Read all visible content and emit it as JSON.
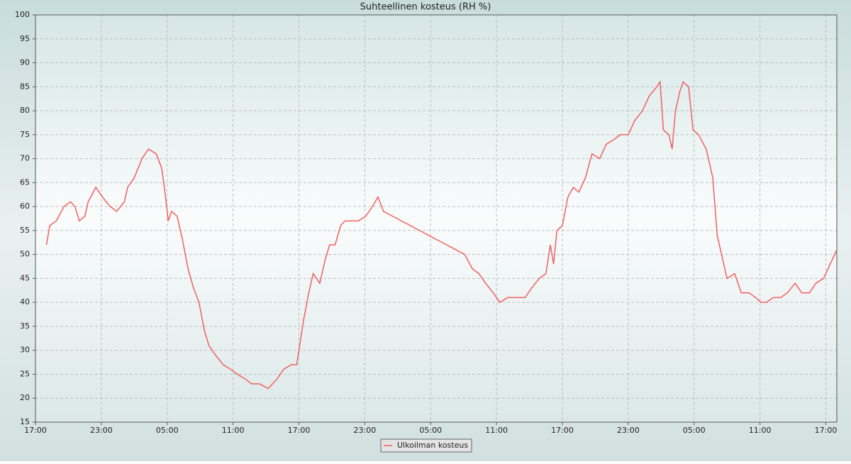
{
  "chart_data": {
    "type": "line",
    "title": "Suhteellinen kosteus (RH %)",
    "series": [
      {
        "name": "Ulkoilman kosteus",
        "color": "#f06060",
        "x": [
          1.0,
          1.3,
          1.9,
          2.6,
          3.2,
          3.6,
          4.0,
          4.5,
          4.8,
          5.5,
          6.1,
          6.8,
          7.4,
          8.1,
          8.4,
          9.0,
          9.7,
          10.3,
          11.0,
          11.5,
          11.8,
          12.1,
          12.4,
          12.9,
          13.4,
          13.9,
          14.4,
          14.9,
          15.4,
          15.8,
          16.4,
          17.1,
          17.8,
          18.4,
          19.1,
          19.7,
          20.4,
          21.2,
          22.0,
          22.6,
          23.3,
          23.8,
          24.0,
          24.4,
          24.9,
          25.3,
          25.9,
          26.4,
          26.8,
          27.3,
          27.8,
          28.2,
          28.8,
          29.4,
          30.1,
          30.7,
          31.2,
          31.7,
          39.1,
          39.8,
          40.4,
          41.0,
          41.7,
          42.3,
          43.0,
          43.9,
          44.6,
          45.2,
          45.9,
          46.5,
          46.9,
          47.2,
          47.5,
          48.0,
          48.5,
          49.0,
          49.5,
          50.1,
          50.7,
          51.4,
          52.0,
          52.7,
          53.3,
          54.0,
          54.6,
          55.3,
          55.9,
          56.6,
          56.9,
          57.2,
          57.7,
          58.0,
          58.3,
          58.7,
          59.0,
          59.5,
          59.9,
          60.4,
          61.1,
          61.7,
          62.1,
          62.6,
          63.0,
          63.7,
          64.3,
          65.0,
          65.6,
          66.1,
          66.6,
          67.2,
          67.9,
          68.5,
          69.2,
          69.8,
          70.5,
          71.1,
          71.8,
          72.4,
          73.0
        ],
        "values": [
          52,
          56,
          57,
          60,
          61,
          60,
          57,
          58,
          61,
          64,
          62,
          60,
          59,
          61,
          64,
          66,
          70,
          72,
          71,
          68,
          63,
          57,
          59,
          58,
          53,
          47,
          43,
          40,
          34,
          31,
          29,
          27,
          26,
          25,
          24,
          23,
          23,
          22,
          24,
          26,
          27,
          27,
          30,
          36,
          42,
          46,
          44,
          49,
          52,
          52,
          56,
          57,
          57,
          57,
          58,
          60,
          62,
          59,
          50,
          47,
          46,
          44,
          42,
          40,
          41,
          41,
          41,
          43,
          45,
          46,
          52,
          48,
          55,
          56,
          62,
          64,
          63,
          66,
          71,
          70,
          73,
          74,
          75,
          75,
          78,
          80,
          83,
          85,
          86,
          76,
          75,
          72,
          80,
          84,
          86,
          85,
          76,
          75,
          72,
          66,
          54,
          49,
          45,
          46,
          42,
          42,
          41,
          40,
          40,
          41,
          41,
          42,
          44,
          42,
          42,
          44,
          45,
          48,
          51
        ]
      }
    ],
    "xlim": [
      0,
      73
    ],
    "xticks": [
      {
        "value": 0,
        "label": "17:00"
      },
      {
        "value": 6,
        "label": "23:00"
      },
      {
        "value": 12,
        "label": "05:00"
      },
      {
        "value": 18,
        "label": "11:00"
      },
      {
        "value": 24,
        "label": "17:00"
      },
      {
        "value": 30,
        "label": "23:00"
      },
      {
        "value": 36,
        "label": "05:00"
      },
      {
        "value": 42,
        "label": "11:00"
      },
      {
        "value": 48,
        "label": "17:00"
      },
      {
        "value": 54,
        "label": "23:00"
      },
      {
        "value": 60,
        "label": "05:00"
      },
      {
        "value": 66,
        "label": "11:00"
      },
      {
        "value": 72,
        "label": "17:00"
      }
    ],
    "ylim": [
      15,
      100
    ],
    "yticks": [
      15,
      20,
      25,
      30,
      35,
      40,
      45,
      50,
      55,
      60,
      65,
      70,
      75,
      80,
      85,
      90,
      95,
      100
    ],
    "grid": true
  }
}
